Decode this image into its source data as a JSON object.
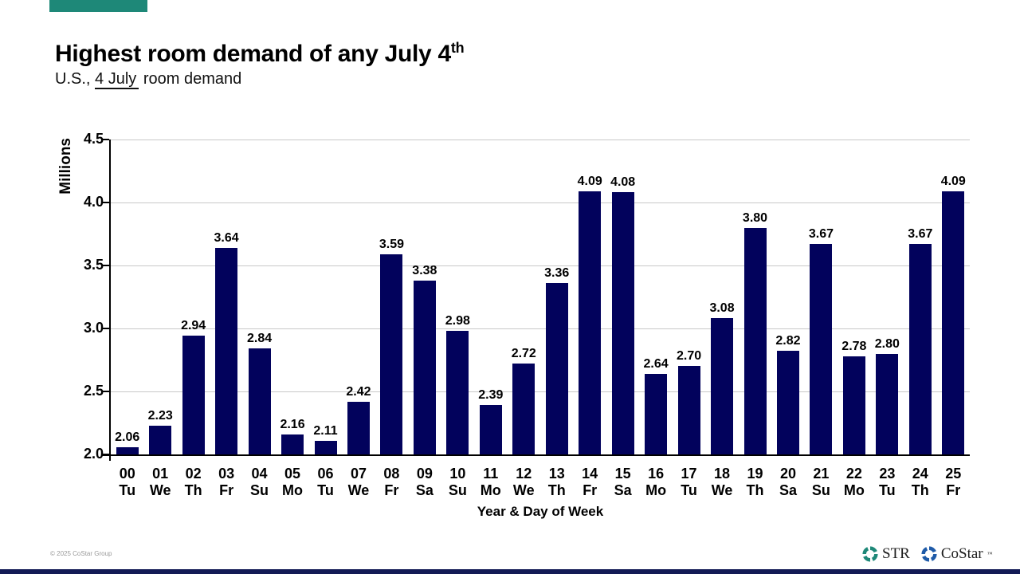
{
  "slide": {
    "title": "Highest room demand of any July 4",
    "title_superscript": "th",
    "subtitle_prefix": "U.S., ",
    "subtitle_underlined": "4 July",
    "subtitle_suffix": " room demand",
    "footer_copyright": "© 2025 CoStar Group",
    "accent_color": "#1E8878",
    "footer_bar_color": "#131A55"
  },
  "chart_data": {
    "type": "bar",
    "title": "Highest room demand of any July 4th",
    "categories": [
      "00",
      "01",
      "02",
      "03",
      "04",
      "05",
      "06",
      "07",
      "08",
      "09",
      "10",
      "11",
      "12",
      "13",
      "14",
      "15",
      "16",
      "17",
      "18",
      "19",
      "20",
      "21",
      "22",
      "23",
      "24",
      "25"
    ],
    "day_of_week": [
      "Tu",
      "We",
      "Th",
      "Fr",
      "Su",
      "Mo",
      "Tu",
      "We",
      "Fr",
      "Sa",
      "Su",
      "Mo",
      "We",
      "Th",
      "Fr",
      "Sa",
      "Mo",
      "Tu",
      "We",
      "Th",
      "Sa",
      "Su",
      "Mo",
      "Tu",
      "Th",
      "Fr"
    ],
    "values": [
      2.06,
      2.23,
      2.94,
      3.64,
      2.84,
      2.16,
      2.11,
      2.42,
      3.59,
      3.38,
      2.98,
      2.39,
      2.72,
      3.36,
      4.09,
      4.08,
      2.64,
      2.7,
      3.08,
      3.8,
      2.82,
      3.67,
      2.78,
      2.8,
      3.67,
      4.09
    ],
    "xlabel": "Year & Day of Week",
    "ylabel": "Millions",
    "ylim": [
      2.0,
      4.5
    ],
    "yticks": [
      2.0,
      2.5,
      3.0,
      3.5,
      4.0,
      4.5
    ],
    "grid": true,
    "legend": false,
    "value_labels_shown": true,
    "bar_color": "#02025C",
    "gridline_color": "#C8C8C8"
  },
  "logos": {
    "str_label": "STR",
    "costar_label": "CoStar",
    "costar_tm": "™",
    "str_color": "#1E8878",
    "costar_color": "#1F5BA8"
  }
}
